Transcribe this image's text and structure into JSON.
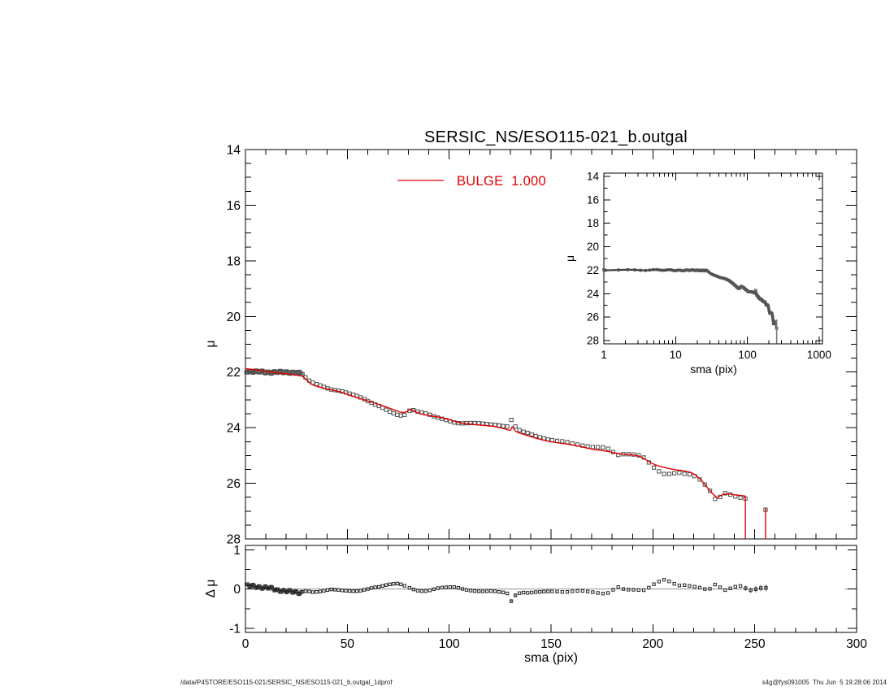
{
  "title": "SERSIC_NS/ESO115-021_b.outgal",
  "legend": {
    "label": "BULGE  1.000",
    "color": "#e00000"
  },
  "footer": {
    "left": "/data/P4STORE/ESO115-021/SERSIC_NS/ESO115-021_b.outgal_1dprof",
    "right": "s4g@fys091005  Thu Jun  5 19:28:06 2014"
  },
  "chart_data": [
    {
      "id": "main",
      "type": "scatter",
      "xlabel": "sma (pix)",
      "ylabel": "μ",
      "xlim": [
        0,
        300
      ],
      "ylim": [
        28,
        14
      ],
      "xtick_major": 50,
      "xtick_minor": 10,
      "ytick_major": 2,
      "ytick_minor": 0.5,
      "point_color": "#4d4d4d",
      "model_color": "#e00000",
      "model_anchors": [
        [
          0,
          21.88
        ],
        [
          3,
          21.9
        ],
        [
          6,
          21.93
        ],
        [
          9,
          21.96
        ],
        [
          12,
          21.99
        ],
        [
          15,
          22.02
        ],
        [
          18,
          22.05
        ],
        [
          21,
          22.07
        ],
        [
          24,
          22.1
        ],
        [
          26,
          22.12
        ],
        [
          28,
          22.15
        ],
        [
          30,
          22.28
        ],
        [
          32,
          22.42
        ],
        [
          34,
          22.49
        ],
        [
          37,
          22.55
        ],
        [
          40,
          22.61
        ],
        [
          43,
          22.65
        ],
        [
          46,
          22.7
        ],
        [
          49,
          22.77
        ],
        [
          52,
          22.85
        ],
        [
          55,
          22.92
        ],
        [
          58,
          22.99
        ],
        [
          61,
          23.06
        ],
        [
          64,
          23.13
        ],
        [
          67,
          23.2
        ],
        [
          70,
          23.28
        ],
        [
          73,
          23.36
        ],
        [
          76,
          23.44
        ],
        [
          78,
          23.46
        ],
        [
          79.5,
          23.4
        ],
        [
          81,
          23.34
        ],
        [
          82.5,
          23.38
        ],
        [
          84,
          23.45
        ],
        [
          86,
          23.5
        ],
        [
          89,
          23.55
        ],
        [
          92,
          23.59
        ],
        [
          95,
          23.62
        ],
        [
          98,
          23.67
        ],
        [
          101,
          23.73
        ],
        [
          104,
          23.8
        ],
        [
          107,
          23.85
        ],
        [
          110,
          23.87
        ],
        [
          113,
          23.89
        ],
        [
          116,
          23.91
        ],
        [
          119,
          23.93
        ],
        [
          122,
          23.95
        ],
        [
          125,
          24.0
        ],
        [
          127,
          24.04
        ],
        [
          129,
          24.08
        ],
        [
          130,
          24.1
        ],
        [
          131,
          23.96
        ],
        [
          132.5,
          24.12
        ],
        [
          134,
          24.18
        ],
        [
          137,
          24.25
        ],
        [
          140,
          24.32
        ],
        [
          143,
          24.39
        ],
        [
          146,
          24.44
        ],
        [
          149,
          24.49
        ],
        [
          152,
          24.53
        ],
        [
          155,
          24.56
        ],
        [
          158,
          24.59
        ],
        [
          161,
          24.63
        ],
        [
          164,
          24.67
        ],
        [
          167,
          24.72
        ],
        [
          170,
          24.77
        ],
        [
          173,
          24.8
        ],
        [
          176,
          24.83
        ],
        [
          179,
          24.87
        ],
        [
          182,
          24.92
        ],
        [
          185,
          24.95
        ],
        [
          188,
          24.97
        ],
        [
          191,
          24.99
        ],
        [
          193,
          25.02
        ],
        [
          195,
          25.08
        ],
        [
          197,
          25.17
        ],
        [
          199,
          25.26
        ],
        [
          201,
          25.33
        ],
        [
          203,
          25.38
        ],
        [
          205,
          25.42
        ],
        [
          208,
          25.47
        ],
        [
          211,
          25.51
        ],
        [
          214,
          25.54
        ],
        [
          217,
          25.58
        ],
        [
          219,
          25.62
        ],
        [
          221,
          25.7
        ],
        [
          223,
          25.83
        ],
        [
          225,
          26.0
        ],
        [
          227,
          26.18
        ],
        [
          229,
          26.35
        ],
        [
          230.5,
          26.45
        ],
        [
          231.5,
          26.52
        ],
        [
          233,
          26.45
        ],
        [
          235,
          26.39
        ],
        [
          237,
          26.38
        ],
        [
          239,
          26.4
        ],
        [
          241,
          26.42
        ],
        [
          243,
          26.44
        ],
        [
          245.4,
          26.46
        ]
      ],
      "model_drops": [
        [
          245.4,
          26.46,
          28.0
        ],
        [
          255.3,
          26.9,
          28.0
        ]
      ],
      "end_points": [
        [
          245.4,
          26.55
        ],
        [
          255.3,
          26.95
        ]
      ],
      "data_max_x": 245.4
    },
    {
      "id": "inset",
      "type": "scatter",
      "xscale": "log",
      "xlabel": "sma (pix)",
      "ylabel": "μ",
      "xlim": [
        1,
        1000
      ],
      "ylim": [
        28,
        14
      ],
      "xticks": [
        1,
        10,
        100,
        1000
      ],
      "ytick_major": 2,
      "ytick_minor": 1,
      "point_color": "#555555",
      "err_rule": {
        "from": 185,
        "base": 0.03,
        "slope": 0.0025
      },
      "end_drop": [
        256,
        26.2,
        28.25
      ]
    },
    {
      "id": "residual",
      "type": "scatter",
      "ylabel": "Δ μ",
      "ylim": [
        -1,
        1
      ],
      "ytick_major": 1,
      "ytick_minor": 0.5,
      "point_color": "#242424",
      "zero_line": {
        "color": "#a0a0a0",
        "segments": [
          [
            0,
            256.5
          ],
          [
            294,
            300
          ]
        ]
      },
      "anchors": [
        [
          0,
          0.07
        ],
        [
          3,
          0.08
        ],
        [
          6,
          0.07
        ],
        [
          9,
          0.04
        ],
        [
          12,
          0.01
        ],
        [
          15,
          -0.02
        ],
        [
          18,
          -0.03
        ],
        [
          21,
          -0.06
        ],
        [
          24,
          -0.1
        ],
        [
          27,
          -0.09
        ],
        [
          30,
          -0.05
        ],
        [
          33,
          -0.08
        ],
        [
          36,
          -0.07
        ],
        [
          39,
          -0.04
        ],
        [
          42,
          -0.01
        ],
        [
          45,
          -0.02
        ],
        [
          48,
          -0.04
        ],
        [
          51,
          -0.05
        ],
        [
          54,
          -0.06
        ],
        [
          57,
          -0.04
        ],
        [
          60,
          0.0
        ],
        [
          63,
          0.04
        ],
        [
          66,
          0.06
        ],
        [
          69,
          0.1
        ],
        [
          72,
          0.13
        ],
        [
          75,
          0.14
        ],
        [
          77,
          0.11
        ],
        [
          79,
          0.06
        ],
        [
          81,
          0.02
        ],
        [
          83,
          -0.02
        ],
        [
          85,
          -0.05
        ],
        [
          88,
          -0.06
        ],
        [
          91,
          -0.03
        ],
        [
          94,
          0.02
        ],
        [
          97,
          0.04
        ],
        [
          100,
          0.05
        ],
        [
          103,
          0.05
        ],
        [
          106,
          0.01
        ],
        [
          109,
          -0.03
        ],
        [
          112,
          -0.05
        ],
        [
          115,
          -0.06
        ],
        [
          118,
          -0.06
        ],
        [
          121,
          -0.05
        ],
        [
          124,
          -0.07
        ],
        [
          127,
          -0.09
        ],
        [
          129,
          -0.12
        ],
        [
          130.5,
          -0.31
        ],
        [
          132,
          -0.18
        ],
        [
          134,
          -0.11
        ],
        [
          136,
          -0.09
        ],
        [
          139,
          -0.1
        ],
        [
          142,
          -0.08
        ],
        [
          145,
          -0.07
        ],
        [
          148,
          -0.06
        ],
        [
          151,
          -0.06
        ],
        [
          154,
          -0.07
        ],
        [
          157,
          -0.08
        ],
        [
          160,
          -0.06
        ],
        [
          163,
          -0.05
        ],
        [
          166,
          -0.05
        ],
        [
          169,
          -0.07
        ],
        [
          172,
          -0.09
        ],
        [
          175,
          -0.12
        ],
        [
          178,
          -0.1
        ],
        [
          180,
          -0.05
        ],
        [
          182,
          0.07
        ],
        [
          184,
          0.03
        ],
        [
          186,
          -0.01
        ],
        [
          189,
          -0.02
        ],
        [
          192,
          -0.02
        ],
        [
          195,
          -0.04
        ],
        [
          197,
          0.0
        ],
        [
          199,
          0.07
        ],
        [
          201,
          0.14
        ],
        [
          203,
          0.19
        ],
        [
          205,
          0.24
        ],
        [
          207,
          0.22
        ],
        [
          209,
          0.17
        ],
        [
          211,
          0.12
        ],
        [
          213,
          0.09
        ],
        [
          216,
          0.1
        ],
        [
          219,
          0.07
        ],
        [
          222,
          0.05
        ],
        [
          224,
          0.02
        ],
        [
          227,
          -0.02
        ],
        [
          229,
          0.03
        ],
        [
          231.5,
          0.17
        ],
        [
          234,
          -0.04
        ],
        [
          236.5,
          -0.02
        ],
        [
          239,
          0.04
        ],
        [
          241.5,
          0.07
        ],
        [
          244,
          0.08
        ],
        [
          246.5,
          -0.02
        ],
        [
          249,
          -0.04
        ],
        [
          251.5,
          0.02
        ],
        [
          255,
          0.03
        ]
      ],
      "samples": [
        {
          "from": 0.5,
          "to": 28.4,
          "step": 0.55
        },
        {
          "from": 29.5,
          "to": 79.0,
          "step": 1.8
        },
        {
          "from": 80.5,
          "to": 148.5,
          "step": 2.0
        },
        {
          "from": 150.5,
          "to": 255.5,
          "step": 2.5
        }
      ],
      "band_jitter": {
        "to": 28.8,
        "amp": 0.035,
        "freq": 2.1,
        "amp2": 0.022,
        "freq2": 0.57
      },
      "errorbars": [
        [
          130.5,
          0.05
        ],
        [
          132.5,
          0.04
        ],
        [
          219,
          0.04
        ],
        [
          221.5,
          0.05
        ],
        [
          224,
          0.05
        ],
        [
          226.5,
          0.05
        ],
        [
          229,
          0.05
        ],
        [
          231.5,
          0.07
        ],
        [
          234,
          0.06
        ],
        [
          236.5,
          0.06
        ],
        [
          239,
          0.06
        ],
        [
          241.5,
          0.07
        ],
        [
          244,
          0.07
        ],
        [
          245.5,
          0.07
        ],
        [
          248,
          0.07
        ],
        [
          250.5,
          0.08
        ],
        [
          253,
          0.08
        ],
        [
          255.5,
          0.09
        ]
      ]
    }
  ]
}
